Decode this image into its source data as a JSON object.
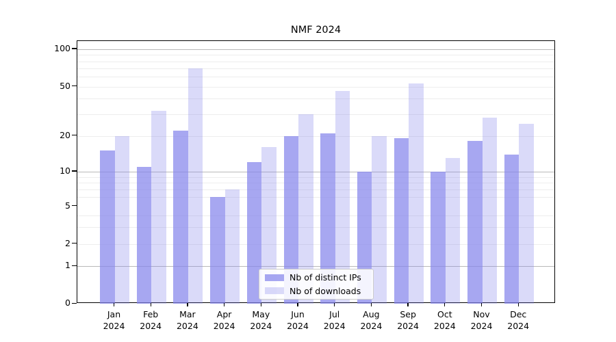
{
  "title": "NMF 2024",
  "chart_data": {
    "type": "bar",
    "title": "NMF 2024",
    "x_categories_line1": [
      "Jan",
      "Feb",
      "Mar",
      "Apr",
      "May",
      "Jun",
      "Jul",
      "Aug",
      "Sep",
      "Oct",
      "Nov",
      "Dec"
    ],
    "x_categories_line2": "2024",
    "series": [
      {
        "name": "Nb of distinct IPs",
        "color": "rgba(133,133,235,0.72)",
        "values": [
          15,
          11,
          22,
          6,
          12,
          20,
          21,
          10,
          19,
          10,
          18,
          14
        ]
      },
      {
        "name": "Nb of downloads",
        "color": "rgba(133,133,235,0.30)",
        "values": [
          20,
          32,
          70,
          7,
          16,
          30,
          46,
          20,
          53,
          13,
          28,
          25
        ]
      }
    ],
    "y_axis": {
      "scale": "log-like",
      "range": [
        0,
        100
      ],
      "tick_labels": [
        "100",
        "50",
        "20",
        "10",
        "5",
        "2",
        "1",
        "0"
      ],
      "tick_values": [
        100,
        50,
        20,
        10,
        5,
        2,
        1,
        0
      ],
      "major_gridlines": [
        100,
        10,
        1
      ],
      "minor_gridlines": [
        2,
        3,
        4,
        6,
        7,
        8,
        9,
        20,
        30,
        40,
        50,
        60,
        70,
        80,
        90
      ]
    },
    "legend": {
      "position": "lower center",
      "entries": [
        "Nb of distinct IPs",
        "Nb of downloads"
      ]
    },
    "colors": {
      "distinct_ips": "rgba(133,133,235,0.72)",
      "downloads": "rgba(133,133,235,0.30)",
      "grid_major": "#b9b9b9",
      "grid_minor": "#ededed"
    }
  }
}
